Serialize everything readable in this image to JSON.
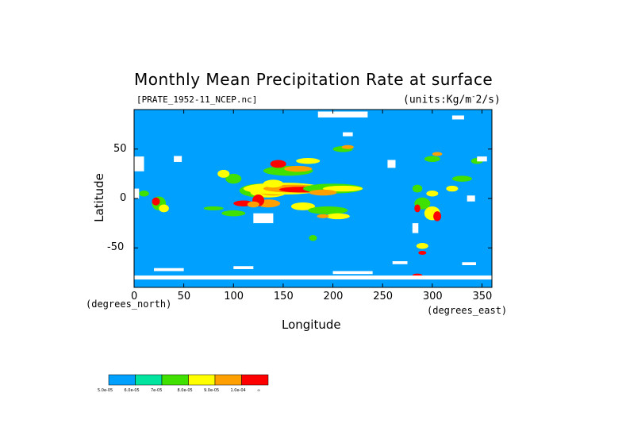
{
  "chart_data": {
    "type": "heatmap",
    "title": "Monthly Mean Precipitation Rate at surface",
    "file_label": "[PRATE_1952-11_NCEP.nc]",
    "units_label": "(units:Kg/m^-2/s)",
    "xlabel": "Longitude",
    "ylabel": "Latitude",
    "x_units": "(degrees_east)",
    "y_units": "(degrees_north)",
    "xlim": [
      0,
      360
    ],
    "ylim": [
      -90,
      90
    ],
    "x_ticks": [
      "0",
      "50",
      "100",
      "150",
      "200",
      "250",
      "300",
      "350"
    ],
    "y_ticks": [
      "50",
      "0",
      "-50"
    ],
    "x_tick_values": [
      0,
      50,
      100,
      150,
      200,
      250,
      300,
      350
    ],
    "y_tick_values": [
      50,
      0,
      -50
    ],
    "colorbar": {
      "levels": [
        "5.0e-05",
        "6.0e-05",
        "7e-05",
        "8.0e-05",
        "9.0e-05",
        "1.0e-04",
        "∞"
      ],
      "colors": [
        "#00a0ff",
        "#00e4a0",
        "#40e000",
        "#ffff00",
        "#ffa000",
        "#ff0000"
      ]
    },
    "background_color": "#00a0ff",
    "missing_color": "#ffffff"
  }
}
